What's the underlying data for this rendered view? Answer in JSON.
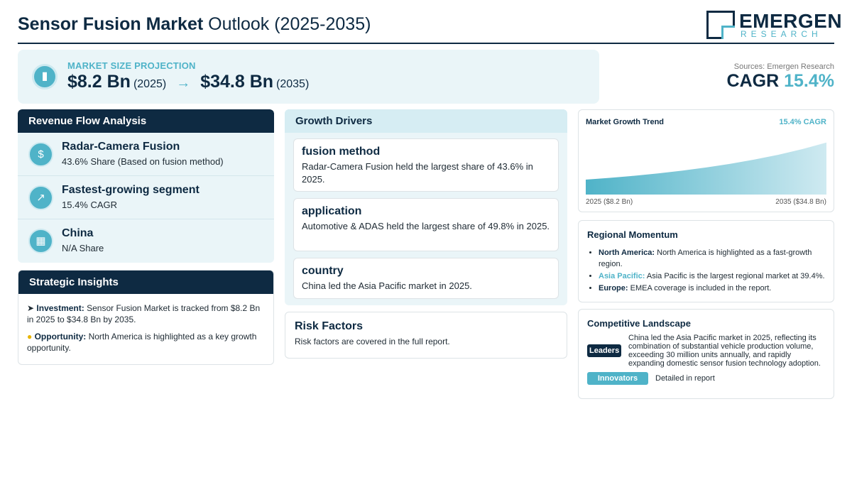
{
  "header": {
    "title_bold": "Sensor Fusion Market",
    "title_rest": " Outlook (2025-2035)",
    "logo_main": "EMERGEN",
    "logo_sub": "RESEARCH"
  },
  "market": {
    "icon": "chart-icon",
    "label": "MARKET SIZE PROJECTION",
    "start_value": "$8.2 Bn",
    "start_year": "(2025)",
    "arrow": "→",
    "end_value": "$34.8 Bn",
    "end_year": "(2035)"
  },
  "sources": "Sources: Emergen Research",
  "cagr": {
    "label": "CAGR",
    "value": "15.4%"
  },
  "revenue": {
    "title": "Revenue Flow Analysis",
    "items": [
      {
        "icon": "money-bag-icon",
        "title": "Radar-Camera Fusion",
        "sub": "43.6% Share (Based on fusion method)"
      },
      {
        "icon": "trend-up-icon",
        "title": "Fastest-growing segment",
        "sub": "15.4% CAGR"
      },
      {
        "icon": "building-icon",
        "title": "China",
        "sub": "N/A Share"
      }
    ]
  },
  "strategic": {
    "title": "Strategic Insights",
    "investment_label": "Investment:",
    "investment_text": " Sensor Fusion Market is tracked from $8.2 Bn in 2025 to $34.8 Bn by 2035.",
    "opportunity_label": "Opportunity:",
    "opportunity_text": " North America is highlighted as a key growth opportunity."
  },
  "growth": {
    "title": "Growth Drivers",
    "cards": [
      {
        "title": "fusion method",
        "text": "Radar-Camera Fusion held the largest share of 43.6% in 2025."
      },
      {
        "title": "application",
        "text": "Automotive & ADAS held the largest share of 49.8% in 2025."
      },
      {
        "title": "country",
        "text": "China led the Asia Pacific market in 2025."
      }
    ]
  },
  "risk": {
    "title": "Risk Factors",
    "text": "Risk factors are covered in the full report."
  },
  "trend": {
    "title": "Market Growth Trend",
    "cagr": "15.4% CAGR",
    "start_label": "2025 ($8.2 Bn)",
    "end_label": "2035 ($34.8 Bn)"
  },
  "chart_data": {
    "type": "area",
    "x": [
      2025,
      2035
    ],
    "values": [
      8.2,
      34.8
    ],
    "title": "Market Growth Trend"
  },
  "regional": {
    "title": "Regional Momentum",
    "items": [
      {
        "label": "North America:",
        "text": " North America is highlighted as a fast-growth region."
      },
      {
        "label": "Asia Pacific:",
        "text": " Asia Pacific is the largest regional market at 39.4%."
      },
      {
        "label": "Europe:",
        "text": " EMEA coverage is included in the report."
      }
    ]
  },
  "competitive": {
    "title": "Competitive Landscape",
    "leaders_badge": "Leaders",
    "leaders_text": "China led the Asia Pacific market in 2025, reflecting its combination of substantial vehicle production volume, exceeding 30 million units annually, and rapidly expanding domestic sensor fusion technology adoption.",
    "innovators_badge": "Innovators",
    "innovators_text": "Detailed in report"
  },
  "colors": {
    "navy": "#0e2a42",
    "accent": "#4fb3c8",
    "panel_bg": "#eaf5f8"
  }
}
